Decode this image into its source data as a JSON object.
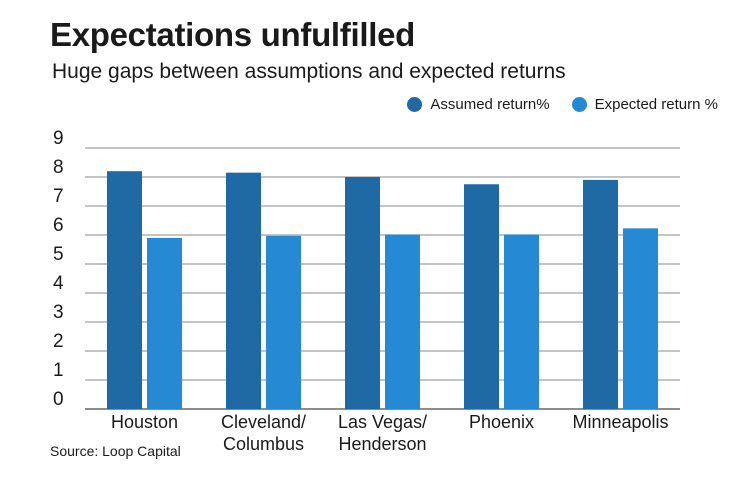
{
  "chart_data": {
    "type": "bar",
    "title": "Expectations unfulfilled",
    "subtitle": "Huge gaps between assumptions and expected returns",
    "source": "Source: Loop Capital",
    "categories": [
      [
        "Houston"
      ],
      [
        "Cleveland/",
        "Columbus"
      ],
      [
        "Las Vegas/",
        "Henderson"
      ],
      [
        "Phoenix"
      ],
      [
        "Minneapolis"
      ]
    ],
    "series": [
      {
        "name": "Assumed return%",
        "color": "#1f6aa5",
        "values": [
          8.2,
          8.15,
          8.0,
          7.75,
          7.9
        ]
      },
      {
        "name": "Expected return %",
        "color": "#2589d3",
        "values": [
          5.9,
          5.97,
          6.02,
          6.02,
          6.23
        ]
      }
    ],
    "yticks": [
      "0",
      "1",
      "2",
      "3",
      "4",
      "5",
      "6",
      "7",
      "8",
      "9"
    ],
    "ylim": [
      0,
      9
    ],
    "grid": true,
    "legend_position": "top-right"
  }
}
